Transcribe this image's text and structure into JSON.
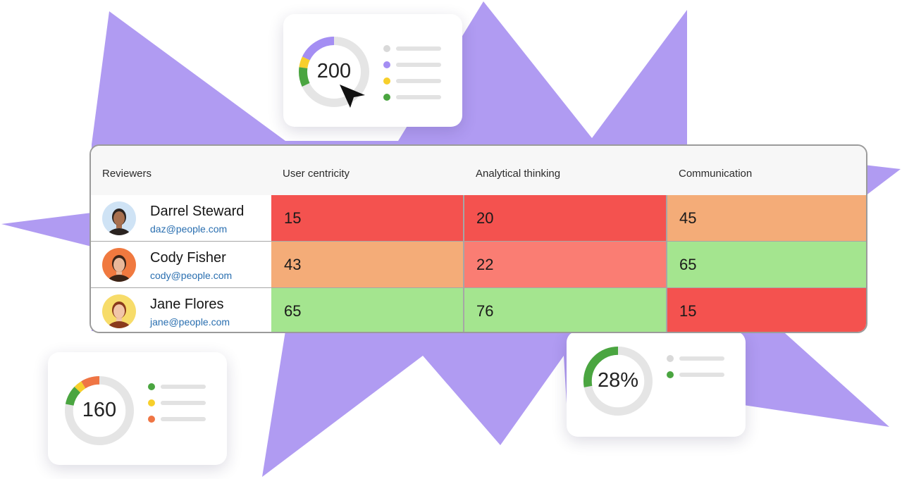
{
  "colors": {
    "background_shape": "#b09bf2",
    "low": "#f4524f",
    "low_medium": "#fa7d73",
    "medium": "#f4ac78",
    "high": "#a4e58f",
    "ring_track": "#e5e5e5",
    "ring_purple": "#a48ef3",
    "ring_yellow": "#f7cf2b",
    "ring_green": "#4aa540",
    "ring_orange": "#ef7544",
    "legend_gray": "#d9d9d9",
    "email_link": "#2a6fb0"
  },
  "widgets": {
    "top": {
      "value": "200",
      "ring": [
        {
          "color": "ring_purple",
          "fraction": 0.18
        },
        {
          "color": "ring_yellow",
          "fraction": 0.05
        },
        {
          "color": "ring_green",
          "fraction": 0.09
        }
      ],
      "legend": [
        "legend_gray",
        "ring_purple",
        "ring_yellow",
        "ring_green"
      ]
    },
    "bottom_left": {
      "value": "160",
      "ring": [
        {
          "color": "ring_orange",
          "fraction": 0.09
        },
        {
          "color": "ring_yellow",
          "fraction": 0.04
        },
        {
          "color": "ring_green",
          "fraction": 0.09
        }
      ],
      "legend": [
        "ring_green",
        "ring_yellow",
        "ring_orange"
      ]
    },
    "bottom_right": {
      "value": "28%",
      "ring": [
        {
          "color": "ring_green",
          "fraction": 0.28
        }
      ],
      "legend": [
        "legend_gray",
        "ring_green"
      ]
    }
  },
  "table": {
    "headers": [
      "Reviewers",
      "User centricity",
      "Analytical thinking",
      "Communication"
    ],
    "rows": [
      {
        "name": "Darrel Steward",
        "email": "daz@people.com",
        "avatar_bg": "#cfe3f5",
        "skin": "#a8704f",
        "hair": "#2a2320",
        "scores": [
          {
            "value": "15",
            "level": "low"
          },
          {
            "value": "20",
            "level": "low"
          },
          {
            "value": "45",
            "level": "medium"
          }
        ]
      },
      {
        "name": "Cody Fisher",
        "email": "cody@people.com",
        "avatar_bg": "#f0793f",
        "skin": "#e9b89a",
        "hair": "#3a2418",
        "scores": [
          {
            "value": "43",
            "level": "medium"
          },
          {
            "value": "22",
            "level": "low_medium"
          },
          {
            "value": "65",
            "level": "high"
          }
        ]
      },
      {
        "name": "Jane Flores",
        "email": "jane@people.com",
        "avatar_bg": "#f7dc6a",
        "skin": "#f1c6a8",
        "hair": "#8a3a1c",
        "scores": [
          {
            "value": "65",
            "level": "high"
          },
          {
            "value": "76",
            "level": "high"
          },
          {
            "value": "15",
            "level": "low"
          }
        ]
      }
    ]
  }
}
